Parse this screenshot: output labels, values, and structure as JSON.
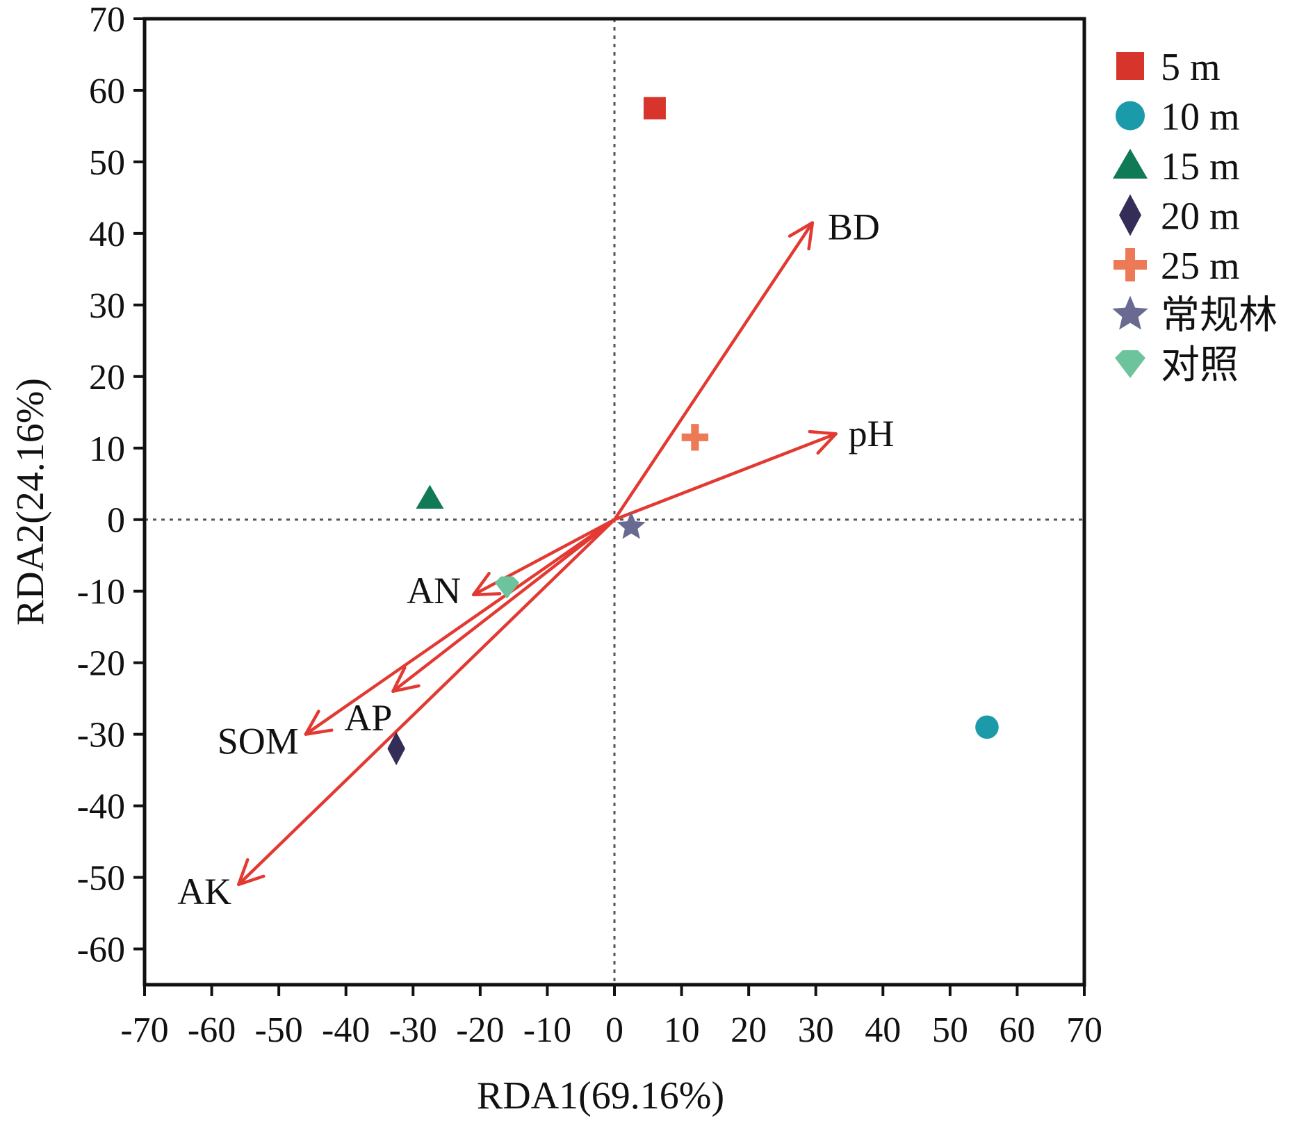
{
  "chart_data": {
    "type": "scatter",
    "xlabel": "RDA1(69.16%)",
    "ylabel": "RDA2(24.16%)",
    "xlim": [
      -70,
      70
    ],
    "ylim": [
      -65,
      70
    ],
    "xticks": [
      -70,
      -60,
      -50,
      -40,
      -30,
      -20,
      -10,
      0,
      10,
      20,
      30,
      40,
      50,
      60,
      70
    ],
    "yticks": [
      -60,
      -50,
      -40,
      -30,
      -20,
      -10,
      0,
      10,
      20,
      30,
      40,
      50,
      60,
      70
    ],
    "reference_lines": {
      "x": 0,
      "y": 0,
      "style": "dotted"
    },
    "legend_position": "right",
    "series": [
      {
        "name": "5 m",
        "marker": "square",
        "color": "#d7352b",
        "x": 6,
        "y": 57.5
      },
      {
        "name": "10 m",
        "marker": "circle",
        "color": "#1b9aaa",
        "x": 55.5,
        "y": -29
      },
      {
        "name": "15 m",
        "marker": "triangle",
        "color": "#0f7a55",
        "x": -27.5,
        "y": 3
      },
      {
        "name": "20 m",
        "marker": "diamond",
        "color": "#342d57",
        "x": -32.5,
        "y": -32
      },
      {
        "name": "25 m",
        "marker": "plus",
        "color": "#ec7a57",
        "x": 12,
        "y": 11.5
      },
      {
        "name": "常规林",
        "marker": "star",
        "color": "#686a91",
        "x": 2.5,
        "y": -1
      },
      {
        "name": "对照",
        "marker": "gem",
        "color": "#6cc39c",
        "x": -16,
        "y": -9.5
      }
    ],
    "vectors": [
      {
        "label": "BD",
        "x": 29.5,
        "y": 41.5
      },
      {
        "label": "pH",
        "x": 33,
        "y": 12
      },
      {
        "label": "AN",
        "x": -21,
        "y": -10.5
      },
      {
        "label": "AP",
        "x": -33,
        "y": -24
      },
      {
        "label": "SOM",
        "x": -46,
        "y": -30
      },
      {
        "label": "AK",
        "x": -56,
        "y": -51
      }
    ],
    "vector_color": "#e23a32"
  }
}
